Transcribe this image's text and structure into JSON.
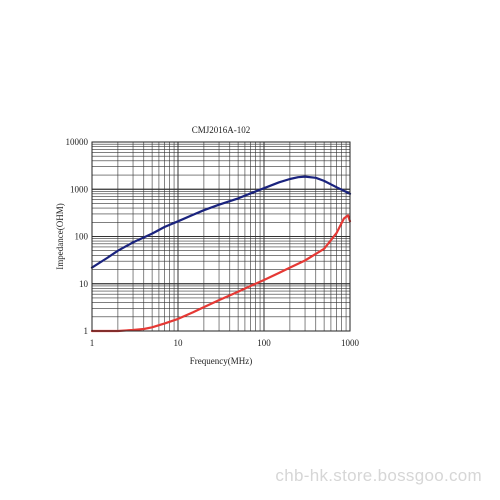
{
  "chart_data": {
    "type": "line",
    "title": "CMJ2016A-102",
    "xlabel": "Frequency(MHz)",
    "ylabel": "Impedance(OHM)",
    "xscale": "log",
    "yscale": "log",
    "xlim": [
      1,
      1000
    ],
    "ylim": [
      1,
      10000
    ],
    "x_ticks": [
      "1",
      "10",
      "100",
      "1000"
    ],
    "y_ticks": [
      "1",
      "10",
      "100",
      "1000",
      "10000"
    ],
    "grid": true,
    "legend": "none",
    "series": [
      {
        "color": "#1a237e",
        "x": [
          1,
          1.5,
          2,
          3,
          5,
          7,
          10,
          15,
          20,
          30,
          50,
          70,
          100,
          150,
          200,
          250,
          300,
          400,
          500,
          700,
          1000
        ],
        "y": [
          22,
          35,
          50,
          75,
          115,
          160,
          210,
          290,
          360,
          470,
          640,
          820,
          1050,
          1400,
          1650,
          1800,
          1850,
          1750,
          1500,
          1100,
          800
        ]
      },
      {
        "color": "#e53935",
        "x": [
          1,
          2,
          3,
          4,
          5,
          7,
          10,
          15,
          20,
          30,
          50,
          70,
          100,
          150,
          200,
          300,
          500,
          700,
          850,
          950,
          1000
        ],
        "y": [
          1,
          1,
          1.05,
          1.1,
          1.2,
          1.45,
          1.8,
          2.5,
          3.2,
          4.5,
          6.8,
          9,
          12,
          17,
          22,
          31,
          55,
          120,
          240,
          280,
          210
        ]
      }
    ]
  },
  "watermark": "chb-hk.store.bossgoo.com"
}
